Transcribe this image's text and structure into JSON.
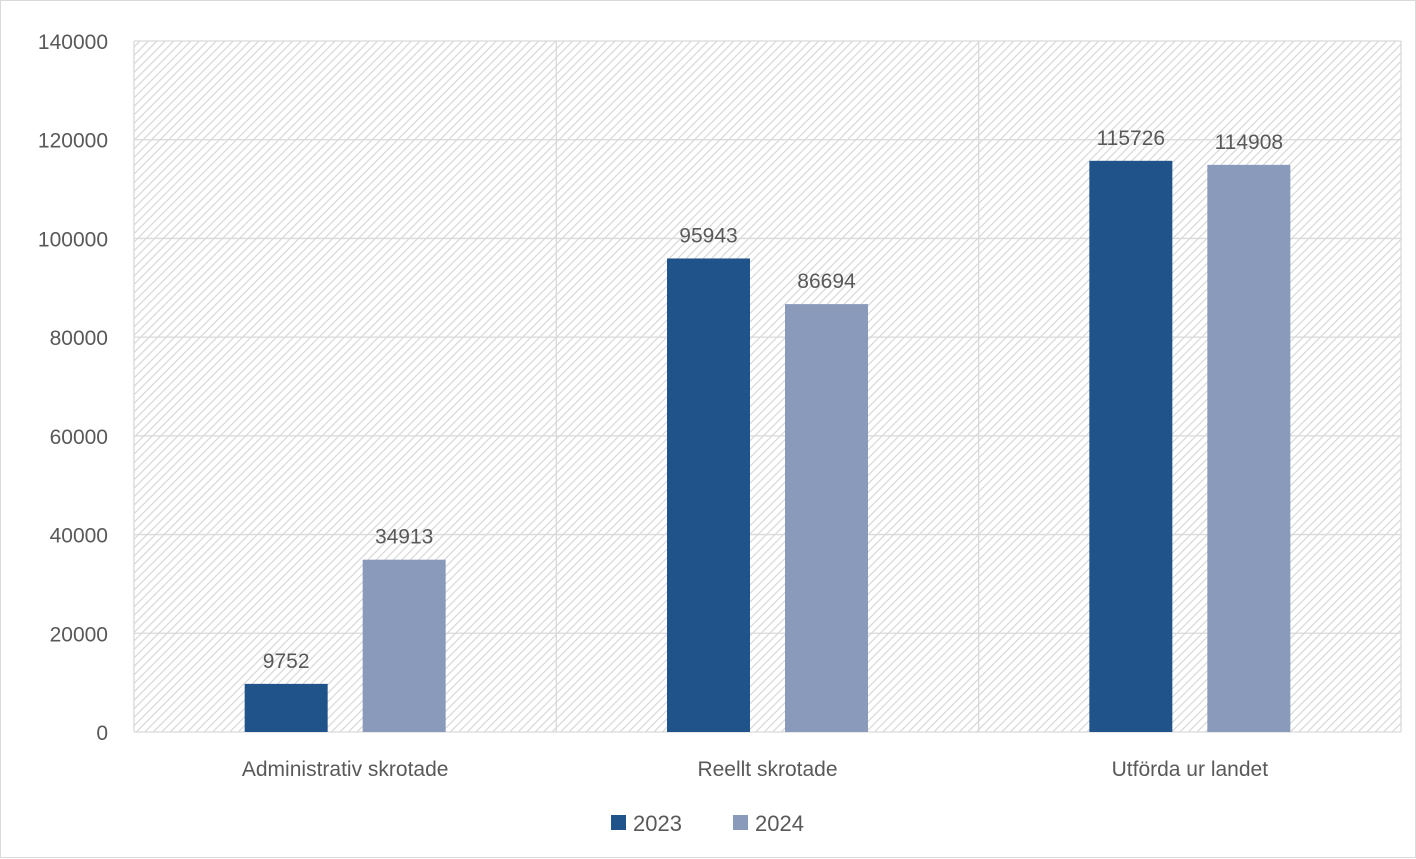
{
  "chart_data": {
    "type": "bar",
    "categories": [
      "Administrativ skrotade",
      "Reellt skrotade",
      "Utförda ur landet"
    ],
    "series": [
      {
        "name": "2023",
        "color": "#1f538a",
        "values": [
          9752,
          95943,
          115726
        ]
      },
      {
        "name": "2024",
        "color": "#8a9abb",
        "values": [
          34913,
          86694,
          114908
        ]
      }
    ],
    "y_ticks": [
      "0",
      "20000",
      "40000",
      "60000",
      "80000",
      "100000",
      "120000",
      "140000"
    ],
    "ylim": [
      0,
      140000
    ],
    "grid": true,
    "plot_background": "hatched",
    "legend": "bottom",
    "data_labels": true
  }
}
